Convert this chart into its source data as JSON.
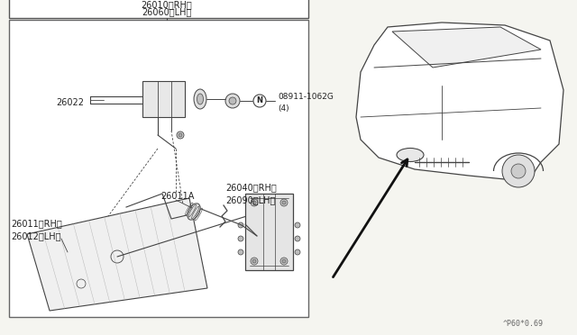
{
  "bg_color": "#f5f5f0",
  "box_color": "#333333",
  "line_color": "#444444",
  "text_color": "#222222",
  "title": "26010 〈RH〉\n26060〈LH〉",
  "footer": "^P60*0.69",
  "parts": {
    "headlamp_label1": "26011 〈RH〉",
    "headlamp_label2": "26012〈LH〉",
    "bracket_label": "26022",
    "bulb_label": "26011A",
    "adj_label1": "26040〈RH〉",
    "adj_label2": "26090〈LH〉",
    "nut_label": "08911-1062G",
    "nut_label2": "（4）"
  }
}
